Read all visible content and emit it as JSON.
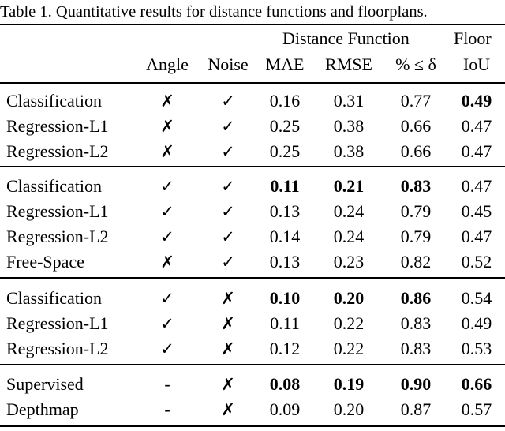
{
  "caption": "Table 1. Quantitative results for distance functions and floorplans.",
  "header": {
    "group_distance": "Distance Function",
    "group_floor": "Floor",
    "angle": "Angle",
    "noise": "Noise",
    "mae": "MAE",
    "rmse": "RMSE",
    "pct": "% ≤ δ",
    "iou": "IoU"
  },
  "rows": [
    {
      "method": "Classification",
      "angle": "✗",
      "noise": "✓",
      "mae": "0.16",
      "rmse": "0.31",
      "pct": "0.77",
      "iou": "0.49",
      "bold": [
        "iou"
      ]
    },
    {
      "method": "Regression-L1",
      "angle": "✗",
      "noise": "✓",
      "mae": "0.25",
      "rmse": "0.38",
      "pct": "0.66",
      "iou": "0.47",
      "bold": []
    },
    {
      "method": "Regression-L2",
      "angle": "✗",
      "noise": "✓",
      "mae": "0.25",
      "rmse": "0.38",
      "pct": "0.66",
      "iou": "0.47",
      "bold": []
    },
    {
      "method": "Classification",
      "angle": "✓",
      "noise": "✓",
      "mae": "0.11",
      "rmse": "0.21",
      "pct": "0.83",
      "iou": "0.47",
      "bold": [
        "mae",
        "rmse",
        "pct"
      ]
    },
    {
      "method": "Regression-L1",
      "angle": "✓",
      "noise": "✓",
      "mae": "0.13",
      "rmse": "0.24",
      "pct": "0.79",
      "iou": "0.45",
      "bold": []
    },
    {
      "method": "Regression-L2",
      "angle": "✓",
      "noise": "✓",
      "mae": "0.14",
      "rmse": "0.24",
      "pct": "0.79",
      "iou": "0.47",
      "bold": []
    },
    {
      "method": "Free-Space",
      "angle": "✗",
      "noise": "✓",
      "mae": "0.13",
      "rmse": "0.23",
      "pct": "0.82",
      "iou": "0.52",
      "bold": []
    },
    {
      "method": "Classification",
      "angle": "✓",
      "noise": "✗",
      "mae": "0.10",
      "rmse": "0.20",
      "pct": "0.86",
      "iou": "0.54",
      "bold": [
        "mae",
        "rmse",
        "pct"
      ]
    },
    {
      "method": "Regression-L1",
      "angle": "✓",
      "noise": "✗",
      "mae": "0.11",
      "rmse": "0.22",
      "pct": "0.83",
      "iou": "0.49",
      "bold": []
    },
    {
      "method": "Regression-L2",
      "angle": "✓",
      "noise": "✗",
      "mae": "0.12",
      "rmse": "0.22",
      "pct": "0.83",
      "iou": "0.53",
      "bold": []
    },
    {
      "method": "Supervised",
      "angle": "-",
      "noise": "✗",
      "mae": "0.08",
      "rmse": "0.19",
      "pct": "0.90",
      "iou": "0.66",
      "bold": [
        "mae",
        "rmse",
        "pct",
        "iou"
      ]
    },
    {
      "method": "Depthmap",
      "angle": "-",
      "noise": "✗",
      "mae": "0.09",
      "rmse": "0.20",
      "pct": "0.87",
      "iou": "0.57",
      "bold": []
    }
  ]
}
